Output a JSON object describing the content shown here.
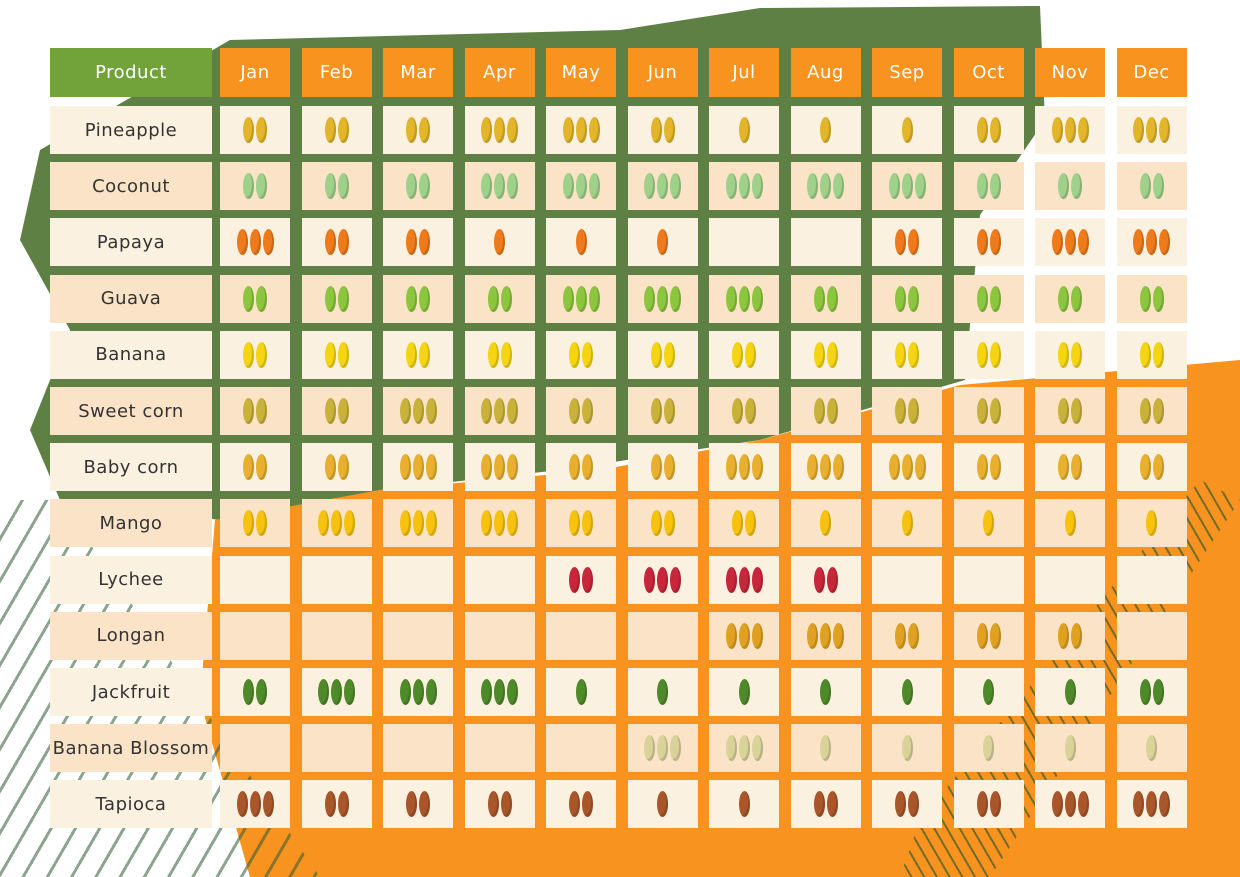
{
  "header": {
    "product_label": "Product"
  },
  "chart_data": {
    "type": "table",
    "months": [
      "Jan",
      "Feb",
      "Mar",
      "Apr",
      "May",
      "Jun",
      "Jul",
      "Aug",
      "Sep",
      "Oct",
      "Nov",
      "Dec"
    ],
    "rows": [
      {
        "product": "Pineapple",
        "icon": "pineapple-icon",
        "color": "#e3b52a",
        "counts": [
          2,
          2,
          2,
          3,
          3,
          2,
          1,
          1,
          1,
          2,
          3,
          3
        ]
      },
      {
        "product": "Coconut",
        "icon": "coconut-icon",
        "color": "#9fd18a",
        "counts": [
          2,
          2,
          2,
          3,
          3,
          3,
          3,
          3,
          3,
          2,
          2,
          2
        ]
      },
      {
        "product": "Papaya",
        "icon": "papaya-icon",
        "color": "#ee7a1c",
        "counts": [
          3,
          2,
          2,
          1,
          1,
          1,
          0,
          0,
          2,
          2,
          3,
          3
        ]
      },
      {
        "product": "Guava",
        "icon": "guava-icon",
        "color": "#8cc63f",
        "counts": [
          2,
          2,
          2,
          2,
          3,
          3,
          3,
          2,
          2,
          2,
          2,
          2
        ]
      },
      {
        "product": "Banana",
        "icon": "banana-icon",
        "color": "#f5d412",
        "counts": [
          2,
          2,
          2,
          2,
          2,
          2,
          2,
          2,
          2,
          2,
          2,
          2
        ]
      },
      {
        "product": "Sweet corn",
        "icon": "sweet-corn-icon",
        "color": "#c9b23a",
        "counts": [
          2,
          2,
          3,
          3,
          2,
          2,
          2,
          2,
          2,
          2,
          2,
          2
        ]
      },
      {
        "product": "Baby corn",
        "icon": "baby-corn-icon",
        "color": "#e9b030",
        "counts": [
          2,
          2,
          3,
          3,
          2,
          2,
          3,
          3,
          3,
          2,
          2,
          2
        ]
      },
      {
        "product": "Mango",
        "icon": "mango-icon",
        "color": "#f6c20e",
        "counts": [
          2,
          3,
          3,
          3,
          2,
          2,
          2,
          1,
          1,
          1,
          1,
          1
        ]
      },
      {
        "product": "Lychee",
        "icon": "lychee-icon",
        "color": "#c8263a",
        "counts": [
          0,
          0,
          0,
          0,
          2,
          3,
          3,
          2,
          0,
          0,
          0,
          0
        ]
      },
      {
        "product": "Longan",
        "icon": "longan-icon",
        "color": "#e0a021",
        "counts": [
          0,
          0,
          0,
          0,
          0,
          0,
          3,
          3,
          2,
          2,
          2,
          0
        ]
      },
      {
        "product": "Jackfruit",
        "icon": "jackfruit-icon",
        "color": "#4f8a2a",
        "counts": [
          2,
          3,
          3,
          3,
          1,
          1,
          1,
          1,
          1,
          1,
          1,
          2
        ]
      },
      {
        "product": "Banana Blossom",
        "icon": "banana-blossom-icon",
        "color": "#d9d39a",
        "counts": [
          0,
          0,
          0,
          0,
          0,
          3,
          3,
          1,
          1,
          1,
          1,
          1
        ]
      },
      {
        "product": "Tapioca",
        "icon": "tapioca-icon",
        "color": "#a8562a",
        "counts": [
          3,
          2,
          2,
          2,
          2,
          1,
          1,
          2,
          2,
          2,
          3,
          3
        ]
      }
    ],
    "colors": {
      "month_header": "#f7931e",
      "product_header": "#72a33a"
    }
  }
}
